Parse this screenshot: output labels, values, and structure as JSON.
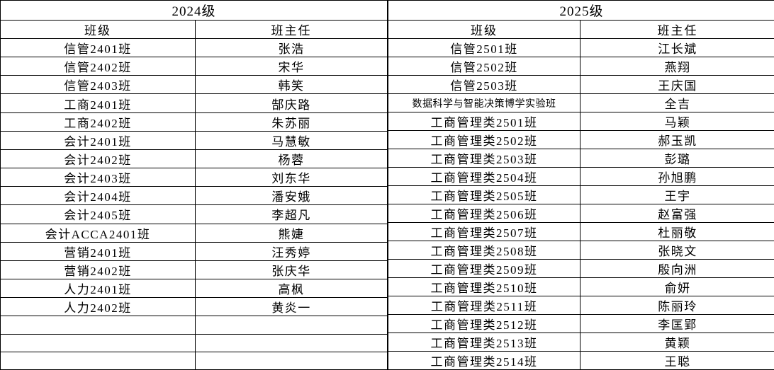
{
  "page": {
    "background_color": "#ffffff",
    "border_color": "#000000",
    "text_color": "#000000"
  },
  "tables": [
    {
      "cohort": "2024级",
      "columns": [
        "班级",
        "班主任"
      ],
      "rows": [
        {
          "class_name": "信管2401班",
          "teacher": "张浩"
        },
        {
          "class_name": "信管2402班",
          "teacher": "宋华"
        },
        {
          "class_name": "信管2403班",
          "teacher": "韩笑"
        },
        {
          "class_name": "工商2401班",
          "teacher": "郜庆路"
        },
        {
          "class_name": "工商2402班",
          "teacher": "朱苏丽"
        },
        {
          "class_name": "会计2401班",
          "teacher": "马慧敏"
        },
        {
          "class_name": "会计2402班",
          "teacher": "杨蓉"
        },
        {
          "class_name": "会计2403班",
          "teacher": "刘东华"
        },
        {
          "class_name": "会计2404班",
          "teacher": "潘安娥"
        },
        {
          "class_name": "会计2405班",
          "teacher": "李超凡"
        },
        {
          "class_name": "会计ACCA2401班",
          "teacher": "熊婕"
        },
        {
          "class_name": "营销2401班",
          "teacher": "汪秀婷"
        },
        {
          "class_name": "营销2402班",
          "teacher": "张庆华"
        },
        {
          "class_name": "人力2401班",
          "teacher": "高枫"
        },
        {
          "class_name": "人力2402班",
          "teacher": "黄炎一"
        },
        {
          "class_name": "",
          "teacher": ""
        },
        {
          "class_name": "",
          "teacher": ""
        },
        {
          "class_name": "",
          "teacher": ""
        }
      ]
    },
    {
      "cohort": "2025级",
      "columns": [
        "班级",
        "班主任"
      ],
      "rows": [
        {
          "class_name": "信管2501班",
          "teacher": "江长斌"
        },
        {
          "class_name": "信管2502班",
          "teacher": "燕翔"
        },
        {
          "class_name": "信管2503班",
          "teacher": "王庆国"
        },
        {
          "class_name": "数据科学与智能决策博学实验班",
          "teacher": "全吉",
          "compact": true
        },
        {
          "class_name": "工商管理类2501班",
          "teacher": "马颖"
        },
        {
          "class_name": "工商管理类2502班",
          "teacher": "郝玉凯"
        },
        {
          "class_name": "工商管理类2503班",
          "teacher": "彭璐"
        },
        {
          "class_name": "工商管理类2504班",
          "teacher": "孙旭鹏"
        },
        {
          "class_name": "工商管理类2505班",
          "teacher": "王宇"
        },
        {
          "class_name": "工商管理类2506班",
          "teacher": "赵富强"
        },
        {
          "class_name": "工商管理类2507班",
          "teacher": "杜丽敬"
        },
        {
          "class_name": "工商管理类2508班",
          "teacher": "张晓文"
        },
        {
          "class_name": "工商管理类2509班",
          "teacher": "殷向洲"
        },
        {
          "class_name": "工商管理类2510班",
          "teacher": "俞妍"
        },
        {
          "class_name": "工商管理类2511班",
          "teacher": "陈丽玲"
        },
        {
          "class_name": "工商管理类2512班",
          "teacher": "李匡郢"
        },
        {
          "class_name": "工商管理类2513班",
          "teacher": "黄颖"
        },
        {
          "class_name": "工商管理类2514班",
          "teacher": "王聪"
        }
      ]
    }
  ]
}
